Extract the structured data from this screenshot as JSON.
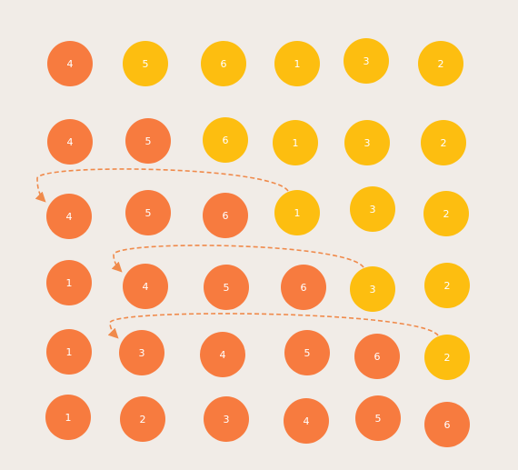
{
  "colors": {
    "background": "#f1ece7",
    "orange": "#f77b3f",
    "yellow": "#fdbe10",
    "arrow": "#f08a4b",
    "text": "#ffffff"
  },
  "rows": [
    {
      "values": [
        "4",
        "5",
        "6",
        "1",
        "3",
        "2"
      ],
      "fills": [
        "orange",
        "yellow",
        "yellow",
        "yellow",
        "yellow",
        "yellow"
      ]
    },
    {
      "values": [
        "4",
        "5",
        "6",
        "1",
        "3",
        "2"
      ],
      "fills": [
        "orange",
        "orange",
        "yellow",
        "yellow",
        "yellow",
        "yellow"
      ]
    },
    {
      "values": [
        "4",
        "5",
        "6",
        "1",
        "3",
        "2"
      ],
      "fills": [
        "orange",
        "orange",
        "orange",
        "yellow",
        "yellow",
        "yellow"
      ]
    },
    {
      "values": [
        "1",
        "4",
        "5",
        "6",
        "3",
        "2"
      ],
      "fills": [
        "orange",
        "orange",
        "orange",
        "orange",
        "yellow",
        "yellow"
      ]
    },
    {
      "values": [
        "1",
        "3",
        "4",
        "5",
        "6",
        "2"
      ],
      "fills": [
        "orange",
        "orange",
        "orange",
        "orange",
        "orange",
        "yellow"
      ]
    },
    {
      "values": [
        "1",
        "2",
        "3",
        "4",
        "5",
        "6"
      ],
      "fills": [
        "orange",
        "orange",
        "orange",
        "orange",
        "orange",
        "orange"
      ]
    }
  ],
  "moves": [
    {
      "row": 2,
      "from_col": 3,
      "to_col": 0,
      "value": "1"
    },
    {
      "row": 3,
      "from_col": 4,
      "to_col": 1,
      "value": "3"
    },
    {
      "row": 4,
      "from_col": 5,
      "to_col": 1,
      "value": "2"
    }
  ]
}
